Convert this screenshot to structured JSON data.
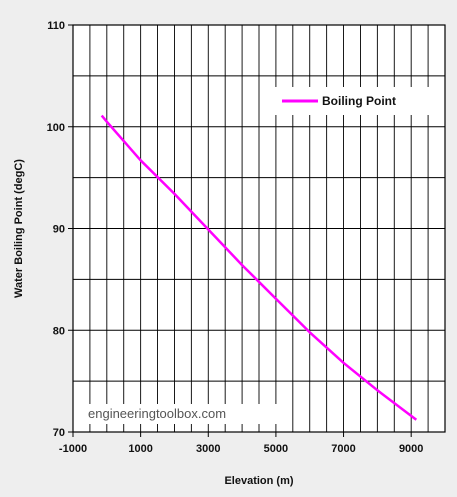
{
  "chart_data": {
    "type": "line",
    "title": "",
    "xlabel": "Elevation (m)",
    "ylabel": "Water Boiling Point (degC)",
    "xlim": [
      -1000,
      10000
    ],
    "ylim": [
      70,
      110
    ],
    "x_ticks": [
      -1000,
      1000,
      3000,
      5000,
      7000,
      9000
    ],
    "y_ticks": [
      70,
      80,
      90,
      100,
      110
    ],
    "grid": true,
    "legend_position": "top-right",
    "series": [
      {
        "name": "Boiling Point",
        "color": "#ff00ff",
        "x": [
          -150,
          0,
          1000,
          2000,
          3000,
          4000,
          5000,
          6000,
          7000,
          8000,
          9150
        ],
        "y": [
          101.1,
          100.5,
          96.7,
          93.4,
          89.9,
          86.4,
          83.1,
          79.8,
          76.8,
          74.1,
          71.2
        ]
      }
    ]
  },
  "watermark": "engineeringtoolbox.com",
  "colors": {
    "plot_background": "#ffffff",
    "page_background": "#eeeeee",
    "grid": "#000000",
    "series": "#ff00ff"
  }
}
